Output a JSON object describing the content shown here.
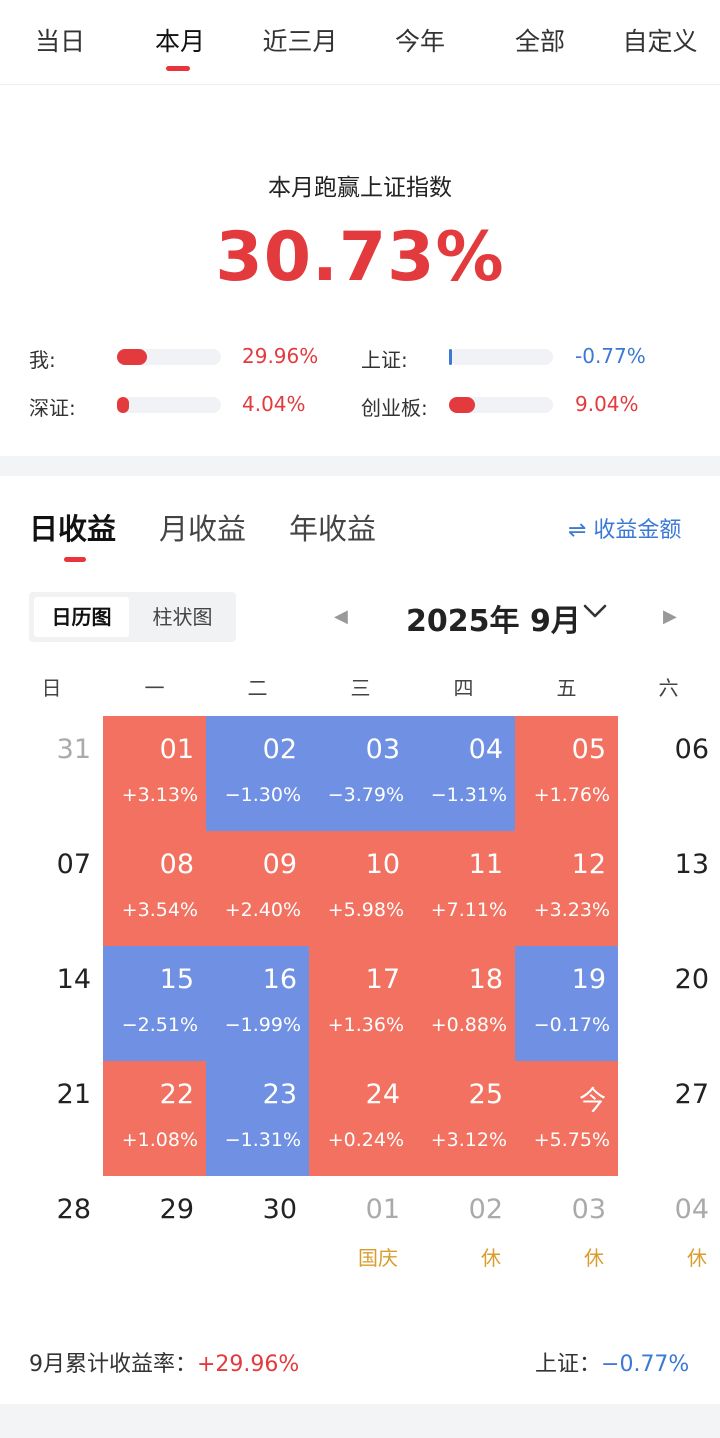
{
  "top_tabs": [
    {
      "label": "当日"
    },
    {
      "label": "本月"
    },
    {
      "label": "近三月"
    },
    {
      "label": "今年"
    },
    {
      "label": "全部"
    },
    {
      "label": "自定义"
    }
  ],
  "summary": {
    "title": "本月跑赢上证指数",
    "value": "30.73%"
  },
  "comparison": [
    {
      "label": "我:",
      "value": "29.96%",
      "fill": 0.29,
      "color": "#e23a3d"
    },
    {
      "label": "上证:",
      "value": "-0.77%",
      "fill": 0.02,
      "color": "#3b79d6"
    },
    {
      "label": "深证:",
      "value": "4.04%",
      "fill": 0.12,
      "color": "#e23a3d"
    },
    {
      "label": "创业板:",
      "value": "9.04%",
      "fill": 0.25,
      "color": "#e23a3d"
    }
  ],
  "returns_tabs": [
    {
      "label": "日收益"
    },
    {
      "label": "月收益"
    },
    {
      "label": "年收益"
    }
  ],
  "amount_toggle": "⇌ 收益金额",
  "view_toggle": {
    "calendar": "日历图",
    "bar": "柱状图"
  },
  "month": {
    "label": "2025年 9月",
    "chevron": "⌄",
    "prev": "◀",
    "next": "▶"
  },
  "weekdays": [
    "日",
    "一",
    "二",
    "三",
    "四",
    "五",
    "六"
  ],
  "weeks": [
    [
      {
        "d": "31",
        "s": "muted"
      },
      {
        "d": "01",
        "p": "+3.13%",
        "s": "pos"
      },
      {
        "d": "02",
        "p": "−1.30%",
        "s": "neg"
      },
      {
        "d": "03",
        "p": "−3.79%",
        "s": "neg"
      },
      {
        "d": "04",
        "p": "−1.31%",
        "s": "neg"
      },
      {
        "d": "05",
        "p": "+1.76%",
        "s": "pos"
      },
      {
        "d": "06",
        "s": "plain"
      }
    ],
    [
      {
        "d": "07",
        "s": "plain"
      },
      {
        "d": "08",
        "p": "+3.54%",
        "s": "pos"
      },
      {
        "d": "09",
        "p": "+2.40%",
        "s": "pos"
      },
      {
        "d": "10",
        "p": "+5.98%",
        "s": "pos"
      },
      {
        "d": "11",
        "p": "+7.11%",
        "s": "pos"
      },
      {
        "d": "12",
        "p": "+3.23%",
        "s": "pos"
      },
      {
        "d": "13",
        "s": "plain"
      }
    ],
    [
      {
        "d": "14",
        "s": "plain"
      },
      {
        "d": "15",
        "p": "−2.51%",
        "s": "neg"
      },
      {
        "d": "16",
        "p": "−1.99%",
        "s": "neg"
      },
      {
        "d": "17",
        "p": "+1.36%",
        "s": "pos"
      },
      {
        "d": "18",
        "p": "+0.88%",
        "s": "pos"
      },
      {
        "d": "19",
        "p": "−0.17%",
        "s": "neg"
      },
      {
        "d": "20",
        "s": "plain"
      }
    ],
    [
      {
        "d": "21",
        "s": "plain"
      },
      {
        "d": "22",
        "p": "+1.08%",
        "s": "pos"
      },
      {
        "d": "23",
        "p": "−1.31%",
        "s": "neg"
      },
      {
        "d": "24",
        "p": "+0.24%",
        "s": "pos"
      },
      {
        "d": "25",
        "p": "+3.12%",
        "s": "pos"
      },
      {
        "d": "今",
        "p": "+5.75%",
        "s": "pos"
      },
      {
        "d": "27",
        "s": "plain"
      }
    ],
    [
      {
        "d": "28",
        "s": "plain"
      },
      {
        "d": "29",
        "s": "plain"
      },
      {
        "d": "30",
        "s": "plain"
      },
      {
        "d": "01",
        "h": "国庆",
        "s": "muted"
      },
      {
        "d": "02",
        "h": "休",
        "s": "muted"
      },
      {
        "d": "03",
        "h": "休",
        "s": "muted"
      },
      {
        "d": "04",
        "h": "休",
        "s": "muted"
      }
    ]
  ],
  "footer": {
    "cum_label": "9月累计收益率：",
    "cum_value": "+29.96%",
    "index_label": "上证：",
    "index_value": "−0.77%"
  }
}
